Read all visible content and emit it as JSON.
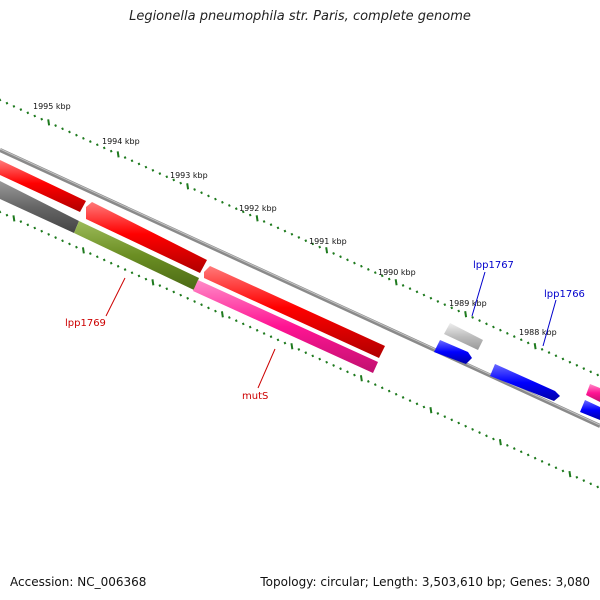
{
  "title": "Legionella pneumophila str. Paris, complete genome",
  "footer": {
    "accession": "Accession: NC_006368",
    "topology": "Topology: circular; Length: 3,503,610 bp; Genes: 3,080"
  },
  "ruler": {
    "tick_color": "#1e7a1e",
    "labels": [
      "1995 kbp",
      "1994 kbp",
      "1993 kbp",
      "1992 kbp",
      "1991 kbp",
      "1990 kbp",
      "1989 kbp",
      "1988 kbp"
    ]
  },
  "genes": {
    "lpp1769": {
      "label": "lpp1769",
      "color": "#cc0000"
    },
    "mutS": {
      "label": "mutS",
      "color": "#cc0000"
    },
    "lpp1767": {
      "label": "lpp1767",
      "color": "#0000cc"
    },
    "lpp1766": {
      "label": "lpp1766",
      "color": "#0000cc"
    }
  },
  "colors": {
    "red_feature": "#ff0000",
    "green_feature": "#6b8e23",
    "pink_feature": "#ff1493",
    "gray_feature": "#666666",
    "lightgray_feature": "#bdbdbd",
    "blue_feature": "#0000ff",
    "backbone": "#808080"
  }
}
